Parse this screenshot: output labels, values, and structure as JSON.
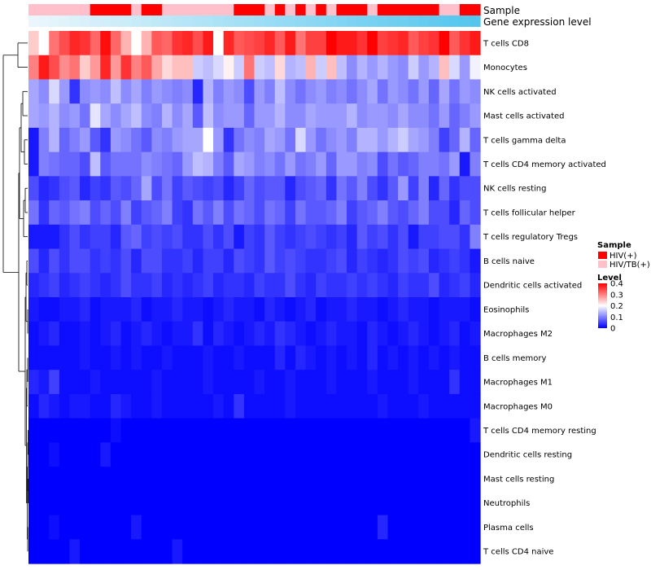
{
  "chart_data": {
    "type": "heatmap",
    "annotation_labels": [
      "Sample",
      "Gene expression level"
    ],
    "rows": [
      "T cells CD8",
      "Monocytes",
      "NK cells activated",
      "Mast cells activated",
      "T cells gamma delta",
      "T cells CD4 memory activated",
      "NK cells resting",
      "T cells follicular helper",
      "T cells regulatory  Tregs",
      "B cells naive",
      "Dendritic cells activated",
      "Eosinophils",
      "Macrophages M2",
      "B cells memory",
      "Macrophages M1",
      "Macrophages M0",
      "T cells CD4 memory resting",
      "Dendritic cells resting",
      "Mast cells resting",
      "Neutrophils",
      "Plasma cells",
      "T cells CD4 naive"
    ],
    "n_columns": 44,
    "sample_groups": [
      "HIV/TB(+)",
      "HIV/TB(+)",
      "HIV/TB(+)",
      "HIV/TB(+)",
      "HIV/TB(+)",
      "HIV/TB(+)",
      "HIV(+)",
      "HIV(+)",
      "HIV(+)",
      "HIV(+)",
      "HIV/TB(+)",
      "HIV(+)",
      "HIV(+)",
      "HIV/TB(+)",
      "HIV/TB(+)",
      "HIV/TB(+)",
      "HIV/TB(+)",
      "HIV/TB(+)",
      "HIV/TB(+)",
      "HIV/TB(+)",
      "HIV(+)",
      "HIV(+)",
      "HIV(+)",
      "HIV/TB(+)",
      "HIV(+)",
      "HIV/TB(+)",
      "HIV(+)",
      "HIV/TB(+)",
      "HIV(+)",
      "HIV/TB(+)",
      "HIV(+)",
      "HIV(+)",
      "HIV(+)",
      "HIV/TB(+)",
      "HIV(+)",
      "HIV(+)",
      "HIV(+)",
      "HIV(+)",
      "HIV(+)",
      "HIV(+)",
      "HIV/TB(+)",
      "HIV/TB(+)",
      "HIV(+)",
      "HIV(+)"
    ],
    "values": [
      [
        0.24,
        0.2,
        0.31,
        0.34,
        0.37,
        0.36,
        0.32,
        0.39,
        0.32,
        0.26,
        0.2,
        0.26,
        0.33,
        0.32,
        0.36,
        0.37,
        0.34,
        0.38,
        0.2,
        0.37,
        0.33,
        0.34,
        0.35,
        0.37,
        0.33,
        0.38,
        0.31,
        0.35,
        0.35,
        0.4,
        0.38,
        0.38,
        0.36,
        0.4,
        0.35,
        0.36,
        0.37,
        0.33,
        0.35,
        0.36,
        0.4,
        0.33,
        0.36,
        0.38
      ],
      [
        0.3,
        0.38,
        0.34,
        0.29,
        0.31,
        0.24,
        0.28,
        0.37,
        0.28,
        0.36,
        0.3,
        0.33,
        0.27,
        0.23,
        0.25,
        0.25,
        0.16,
        0.15,
        0.17,
        0.21,
        0.16,
        0.31,
        0.16,
        0.15,
        0.23,
        0.14,
        0.15,
        0.26,
        0.16,
        0.25,
        0.15,
        0.11,
        0.14,
        0.12,
        0.14,
        0.12,
        0.11,
        0.16,
        0.12,
        0.14,
        0.25,
        0.17,
        0.12,
        0.19
      ],
      [
        0.13,
        0.11,
        0.17,
        0.12,
        0.04,
        0.11,
        0.12,
        0.11,
        0.15,
        0.11,
        0.13,
        0.1,
        0.12,
        0.11,
        0.1,
        0.11,
        0.03,
        0.14,
        0.1,
        0.12,
        0.11,
        0.06,
        0.12,
        0.1,
        0.15,
        0.11,
        0.09,
        0.11,
        0.12,
        0.1,
        0.11,
        0.09,
        0.11,
        0.13,
        0.09,
        0.12,
        0.11,
        0.09,
        0.12,
        0.08,
        0.13,
        0.09,
        0.12,
        0.11
      ],
      [
        0.13,
        0.12,
        0.14,
        0.11,
        0.12,
        0.09,
        0.18,
        0.13,
        0.11,
        0.13,
        0.15,
        0.11,
        0.1,
        0.14,
        0.11,
        0.13,
        0.07,
        0.15,
        0.11,
        0.12,
        0.12,
        0.08,
        0.12,
        0.12,
        0.14,
        0.11,
        0.11,
        0.13,
        0.12,
        0.12,
        0.12,
        0.14,
        0.11,
        0.12,
        0.12,
        0.11,
        0.13,
        0.11,
        0.11,
        0.09,
        0.12,
        0.08,
        0.1,
        0.12
      ],
      [
        0.02,
        0.1,
        0.14,
        0.08,
        0.1,
        0.12,
        0.07,
        0.04,
        0.12,
        0.11,
        0.09,
        0.07,
        0.11,
        0.1,
        0.12,
        0.13,
        0.13,
        0.2,
        0.12,
        0.04,
        0.09,
        0.11,
        0.1,
        0.13,
        0.12,
        0.09,
        0.17,
        0.12,
        0.09,
        0.11,
        0.12,
        0.1,
        0.14,
        0.14,
        0.12,
        0.14,
        0.16,
        0.13,
        0.12,
        0.1,
        0.05,
        0.08,
        0.14,
        0.08
      ],
      [
        0.02,
        0.1,
        0.09,
        0.08,
        0.08,
        0.06,
        0.15,
        0.07,
        0.09,
        0.09,
        0.09,
        0.11,
        0.1,
        0.09,
        0.08,
        0.12,
        0.15,
        0.14,
        0.1,
        0.07,
        0.13,
        0.12,
        0.1,
        0.11,
        0.09,
        0.12,
        0.09,
        0.1,
        0.12,
        0.08,
        0.12,
        0.12,
        0.1,
        0.11,
        0.06,
        0.09,
        0.07,
        0.08,
        0.1,
        0.1,
        0.09,
        0.12,
        0.02,
        0.1
      ],
      [
        0.06,
        0.03,
        0.04,
        0.06,
        0.07,
        0.03,
        0.05,
        0.04,
        0.07,
        0.06,
        0.08,
        0.13,
        0.06,
        0.09,
        0.05,
        0.07,
        0.06,
        0.05,
        0.06,
        0.03,
        0.05,
        0.08,
        0.06,
        0.07,
        0.07,
        0.03,
        0.06,
        0.07,
        0.08,
        0.04,
        0.09,
        0.07,
        0.1,
        0.06,
        0.04,
        0.07,
        0.12,
        0.05,
        0.1,
        0.03,
        0.08,
        0.04,
        0.06,
        0.06
      ],
      [
        0.09,
        0.04,
        0.08,
        0.07,
        0.09,
        0.1,
        0.06,
        0.08,
        0.06,
        0.1,
        0.05,
        0.07,
        0.08,
        0.1,
        0.05,
        0.04,
        0.09,
        0.07,
        0.1,
        0.06,
        0.09,
        0.08,
        0.06,
        0.09,
        0.08,
        0.05,
        0.09,
        0.07,
        0.07,
        0.08,
        0.1,
        0.05,
        0.07,
        0.08,
        0.1,
        0.07,
        0.06,
        0.08,
        0.1,
        0.06,
        0.06,
        0.03,
        0.08,
        0.06
      ],
      [
        0.02,
        0.02,
        0.02,
        0.04,
        0.06,
        0.04,
        0.05,
        0.05,
        0.03,
        0.07,
        0.08,
        0.05,
        0.06,
        0.05,
        0.06,
        0.04,
        0.04,
        0.06,
        0.04,
        0.06,
        0.02,
        0.05,
        0.04,
        0.07,
        0.05,
        0.04,
        0.05,
        0.06,
        0.05,
        0.04,
        0.05,
        0.03,
        0.07,
        0.05,
        0.06,
        0.04,
        0.06,
        0.02,
        0.05,
        0.05,
        0.06,
        0.06,
        0.04,
        0.1
      ],
      [
        0.06,
        0.03,
        0.06,
        0.04,
        0.06,
        0.06,
        0.04,
        0.05,
        0.04,
        0.06,
        0.03,
        0.06,
        0.06,
        0.04,
        0.04,
        0.05,
        0.03,
        0.05,
        0.05,
        0.03,
        0.06,
        0.05,
        0.04,
        0.07,
        0.05,
        0.06,
        0.05,
        0.04,
        0.04,
        0.05,
        0.06,
        0.03,
        0.05,
        0.04,
        0.03,
        0.04,
        0.06,
        0.05,
        0.06,
        0.03,
        0.04,
        0.05,
        0.04,
        0.02
      ],
      [
        0.03,
        0.04,
        0.05,
        0.03,
        0.04,
        0.05,
        0.04,
        0.03,
        0.04,
        0.06,
        0.04,
        0.04,
        0.05,
        0.03,
        0.04,
        0.03,
        0.04,
        0.05,
        0.03,
        0.04,
        0.04,
        0.03,
        0.05,
        0.04,
        0.04,
        0.06,
        0.04,
        0.03,
        0.05,
        0.04,
        0.04,
        0.05,
        0.04,
        0.05,
        0.04,
        0.03,
        0.05,
        0.04,
        0.04,
        0.06,
        0.03,
        0.04,
        0.05,
        0.03
      ],
      [
        0.02,
        0.01,
        0.01,
        0.02,
        0.02,
        0.03,
        0.01,
        0.02,
        0.02,
        0.02,
        0.03,
        0.01,
        0.02,
        0.02,
        0.03,
        0.02,
        0.02,
        0.01,
        0.02,
        0.03,
        0.02,
        0.02,
        0.01,
        0.03,
        0.02,
        0.01,
        0.02,
        0.03,
        0.01,
        0.02,
        0.02,
        0.03,
        0.02,
        0.02,
        0.01,
        0.02,
        0.03,
        0.02,
        0.02,
        0.01,
        0.02,
        0.02,
        0.02,
        0.01
      ],
      [
        0.01,
        0.02,
        0.03,
        0.01,
        0.01,
        0.02,
        0.01,
        0.02,
        0.03,
        0.01,
        0.02,
        0.03,
        0.02,
        0.01,
        0.02,
        0.02,
        0.04,
        0.01,
        0.03,
        0.02,
        0.01,
        0.02,
        0.03,
        0.02,
        0.04,
        0.03,
        0.02,
        0.01,
        0.02,
        0.03,
        0.02,
        0.02,
        0.01,
        0.03,
        0.02,
        0.01,
        0.02,
        0.03,
        0.02,
        0.01,
        0.02,
        0.03,
        0.01,
        0.02
      ],
      [
        0.01,
        0.01,
        0.01,
        0.01,
        0.01,
        0.02,
        0.01,
        0.01,
        0.02,
        0.01,
        0.02,
        0.01,
        0.01,
        0.02,
        0.01,
        0.01,
        0.01,
        0.02,
        0.01,
        0.01,
        0.02,
        0.01,
        0.01,
        0.01,
        0.03,
        0.01,
        0.03,
        0.02,
        0.01,
        0.02,
        0.01,
        0.02,
        0.01,
        0.03,
        0.01,
        0.02,
        0.01,
        0.02,
        0.01,
        0.02,
        0.01,
        0.02,
        0.01,
        0.01
      ],
      [
        0.03,
        0.02,
        0.05,
        0.01,
        0.01,
        0.01,
        0.02,
        0.01,
        0.01,
        0.01,
        0.01,
        0.01,
        0.02,
        0.01,
        0.01,
        0.01,
        0.01,
        0.02,
        0.01,
        0.01,
        0.01,
        0.01,
        0.02,
        0.01,
        0.01,
        0.02,
        0.01,
        0.01,
        0.01,
        0.02,
        0.01,
        0.01,
        0.01,
        0.02,
        0.01,
        0.01,
        0.01,
        0.02,
        0.01,
        0.01,
        0.01,
        0.04,
        0.01,
        0.01
      ],
      [
        0.01,
        0.03,
        0.02,
        0.01,
        0.02,
        0.02,
        0.01,
        0.01,
        0.03,
        0.02,
        0.01,
        0.01,
        0.02,
        0.01,
        0.01,
        0.01,
        0.01,
        0.01,
        0.02,
        0.01,
        0.04,
        0.01,
        0.01,
        0.01,
        0.01,
        0.02,
        0.01,
        0.01,
        0.01,
        0.01,
        0.01,
        0.01,
        0.01,
        0.01,
        0.02,
        0.01,
        0.01,
        0.01,
        0.02,
        0.01,
        0.01,
        0.01,
        0.01,
        0.01
      ],
      [
        0.0,
        0.0,
        0.0,
        0.0,
        0.0,
        0.0,
        0.0,
        0.0,
        0.01,
        0.0,
        0.0,
        0.0,
        0.0,
        0.0,
        0.0,
        0.0,
        0.0,
        0.0,
        0.0,
        0.0,
        0.0,
        0.0,
        0.0,
        0.0,
        0.0,
        0.0,
        0.0,
        0.0,
        0.0,
        0.0,
        0.0,
        0.0,
        0.0,
        0.0,
        0.0,
        0.0,
        0.0,
        0.0,
        0.0,
        0.0,
        0.0,
        0.0,
        0.0,
        0.02
      ],
      [
        0.0,
        0.0,
        0.01,
        0.0,
        0.0,
        0.0,
        0.0,
        0.02,
        0.0,
        0.0,
        0.0,
        0.0,
        0.0,
        0.0,
        0.0,
        0.0,
        0.0,
        0.0,
        0.0,
        0.0,
        0.0,
        0.0,
        0.0,
        0.0,
        0.0,
        0.0,
        0.0,
        0.0,
        0.0,
        0.0,
        0.0,
        0.0,
        0.0,
        0.0,
        0.0,
        0.0,
        0.0,
        0.0,
        0.0,
        0.0,
        0.0,
        0.0,
        0.0,
        0.0
      ],
      [
        0.0,
        0.0,
        0.0,
        0.0,
        0.0,
        0.0,
        0.0,
        0.0,
        0.0,
        0.0,
        0.0,
        0.0,
        0.0,
        0.0,
        0.0,
        0.0,
        0.0,
        0.0,
        0.0,
        0.0,
        0.0,
        0.0,
        0.0,
        0.0,
        0.0,
        0.0,
        0.0,
        0.0,
        0.0,
        0.0,
        0.0,
        0.0,
        0.0,
        0.0,
        0.0,
        0.0,
        0.0,
        0.0,
        0.0,
        0.0,
        0.0,
        0.0,
        0.0,
        0.0
      ],
      [
        0.0,
        0.0,
        0.0,
        0.0,
        0.0,
        0.0,
        0.0,
        0.0,
        0.0,
        0.0,
        0.0,
        0.0,
        0.0,
        0.0,
        0.0,
        0.0,
        0.0,
        0.0,
        0.0,
        0.0,
        0.0,
        0.0,
        0.0,
        0.0,
        0.0,
        0.0,
        0.0,
        0.0,
        0.0,
        0.0,
        0.0,
        0.0,
        0.0,
        0.0,
        0.0,
        0.0,
        0.0,
        0.0,
        0.0,
        0.0,
        0.0,
        0.0,
        0.0,
        0.0
      ],
      [
        0.0,
        0.0,
        0.01,
        0.0,
        0.0,
        0.0,
        0.0,
        0.0,
        0.0,
        0.0,
        0.02,
        0.0,
        0.0,
        0.0,
        0.0,
        0.0,
        0.0,
        0.0,
        0.0,
        0.0,
        0.0,
        0.0,
        0.0,
        0.0,
        0.0,
        0.0,
        0.0,
        0.0,
        0.0,
        0.0,
        0.0,
        0.0,
        0.0,
        0.0,
        0.03,
        0.0,
        0.0,
        0.0,
        0.0,
        0.0,
        0.0,
        0.0,
        0.0,
        0.0
      ],
      [
        0.0,
        0.0,
        0.0,
        0.0,
        0.02,
        0.0,
        0.0,
        0.0,
        0.0,
        0.0,
        0.0,
        0.0,
        0.0,
        0.0,
        0.02,
        0.0,
        0.0,
        0.0,
        0.0,
        0.0,
        0.0,
        0.0,
        0.0,
        0.0,
        0.0,
        0.0,
        0.0,
        0.0,
        0.0,
        0.0,
        0.0,
        0.0,
        0.0,
        0.0,
        0.0,
        0.0,
        0.0,
        0.0,
        0.0,
        0.0,
        0.0,
        0.0,
        0.0,
        0.0
      ]
    ],
    "legends": {
      "sample": {
        "title": "Sample",
        "entries": [
          {
            "label": "HIV(+)",
            "color": "#ff0000"
          },
          {
            "label": "HIV/TB(+)",
            "color": "#ffc0cb"
          }
        ]
      },
      "level": {
        "title": "Level",
        "ticks": [
          "0.4",
          "0.3",
          "0.2",
          "0.1",
          "0"
        ],
        "tick_values": [
          0.4,
          0.3,
          0.2,
          0.1,
          0
        ],
        "range": [
          0,
          0.4
        ]
      }
    },
    "colors": {
      "low": "#0000ff",
      "mid": "#ffffff",
      "high": "#ff0000",
      "gene_bar_start": "#eaf6fc",
      "gene_bar_end": "#54c6ee"
    },
    "row_dendrogram": "hierarchical clustering (left)"
  }
}
